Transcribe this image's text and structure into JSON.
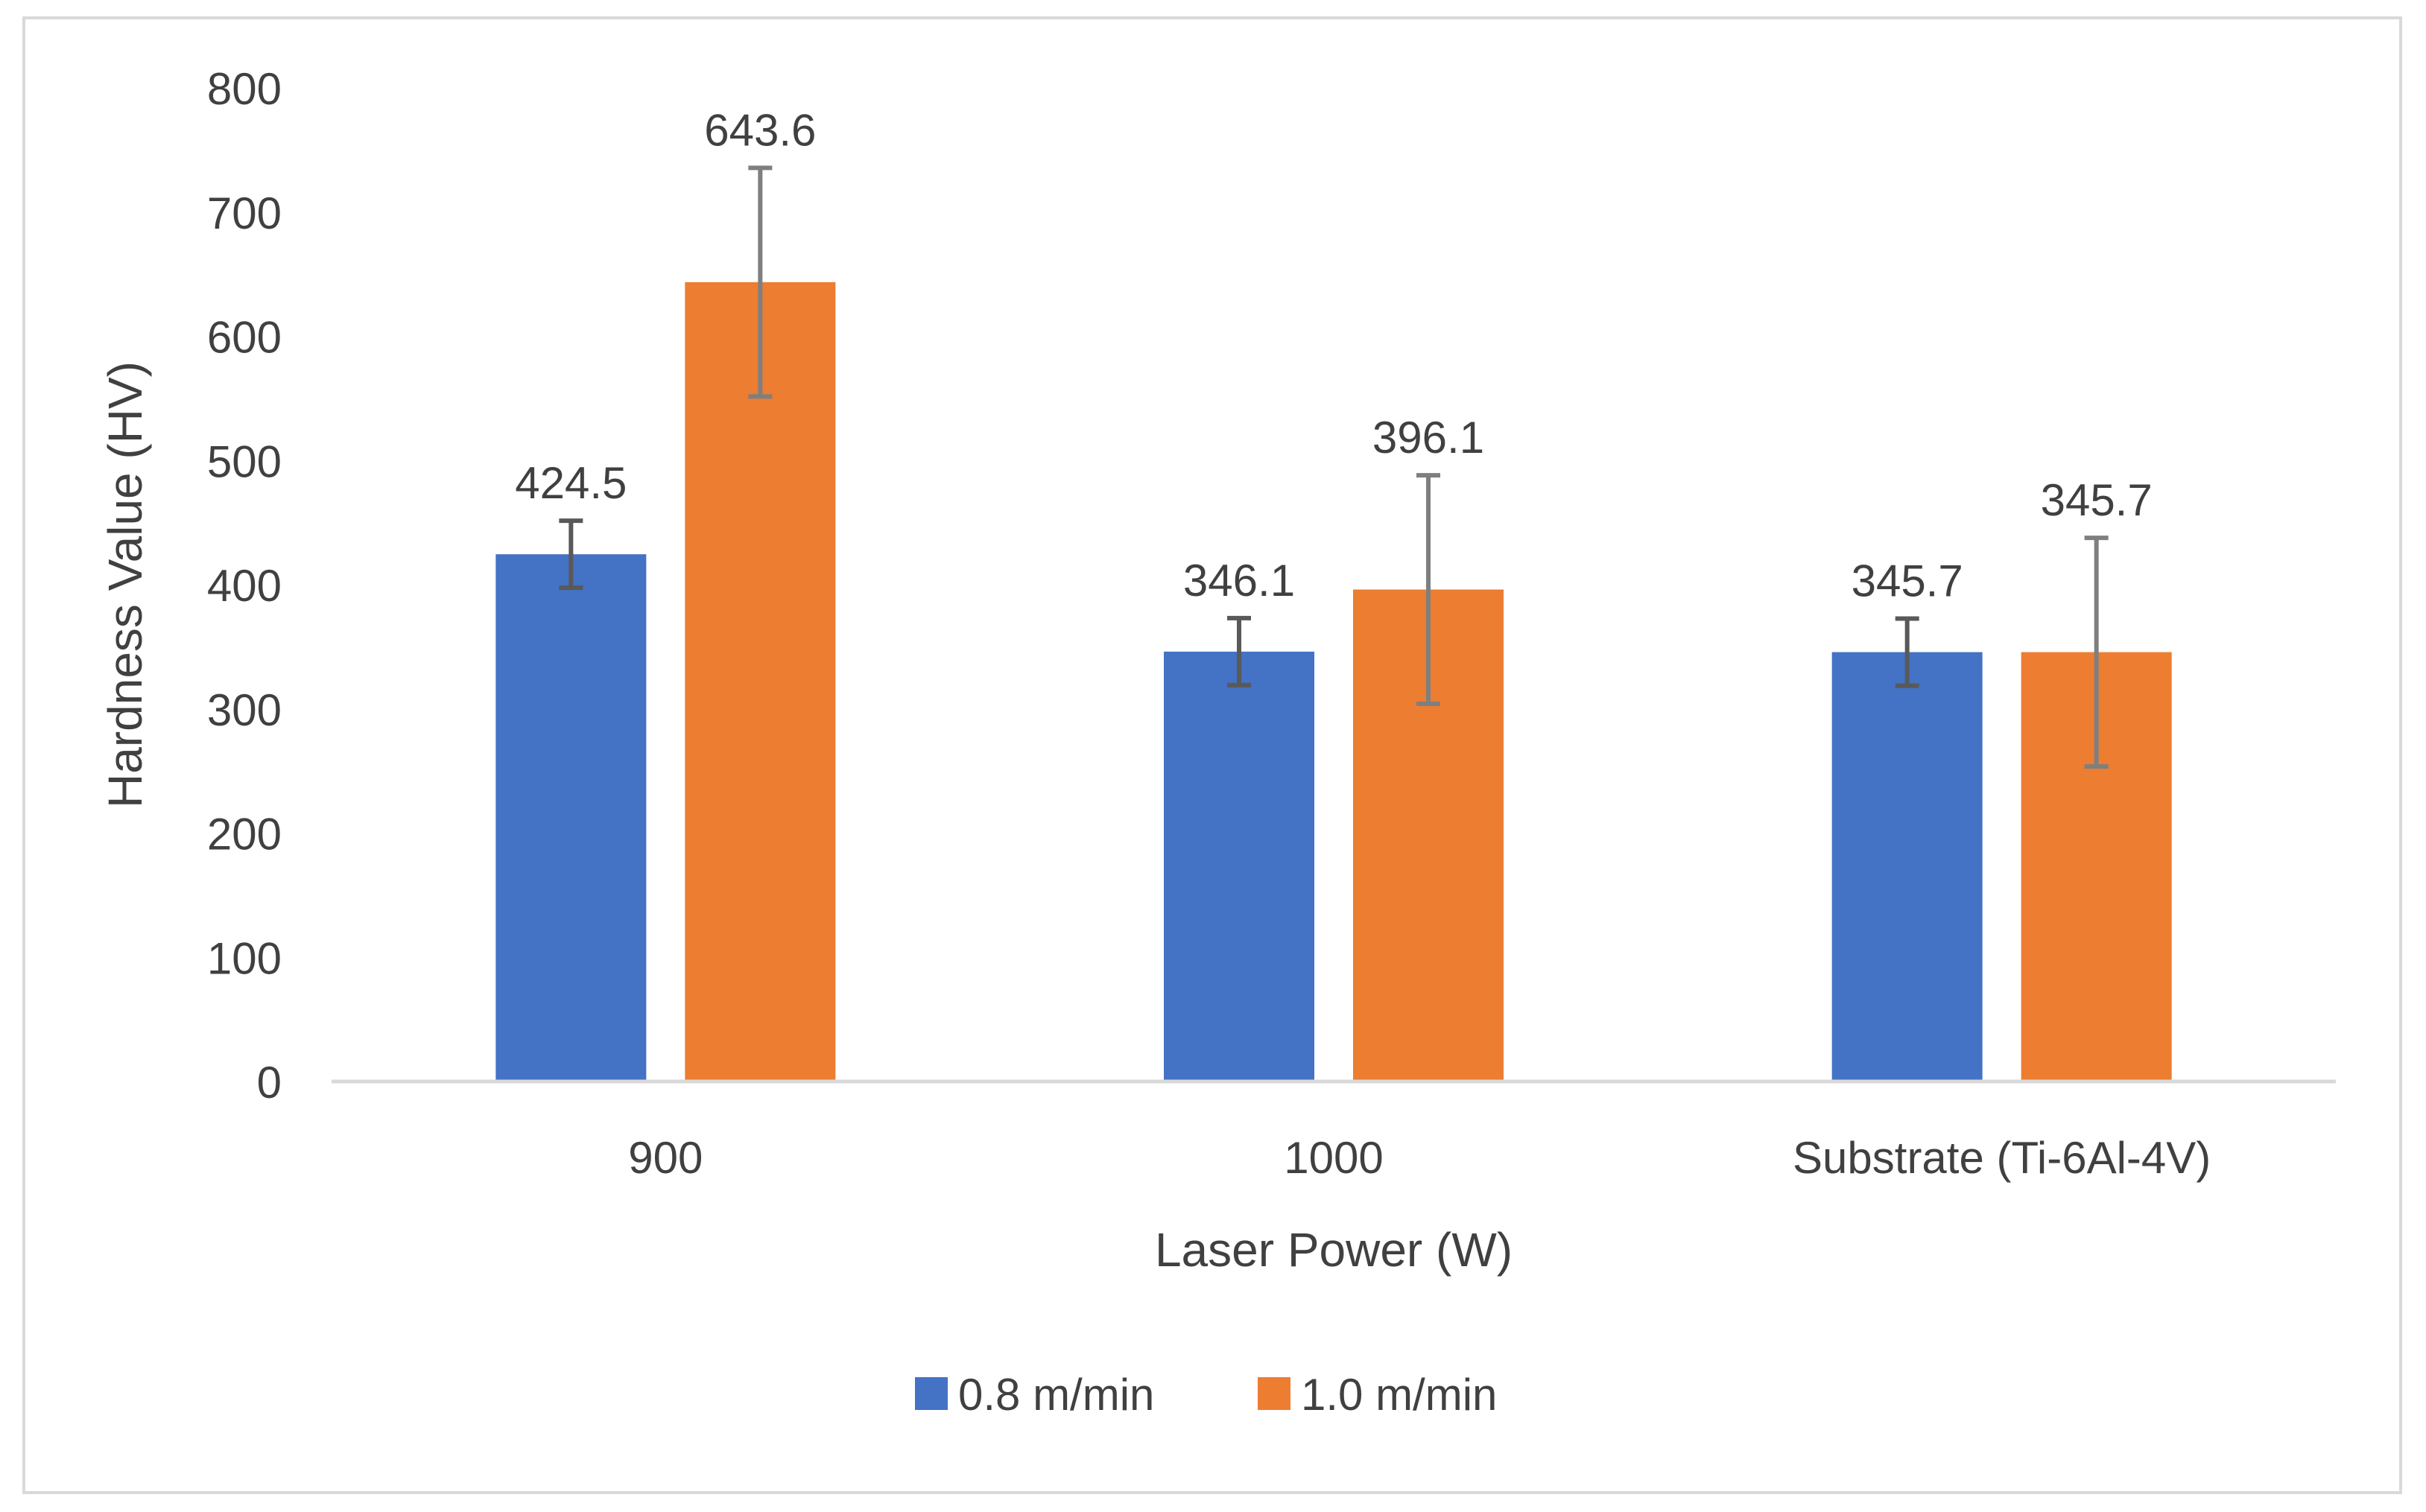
{
  "chart_data": {
    "type": "bar",
    "title": "",
    "xlabel": "Laser Power (W)",
    "ylabel": "Hardness Value (HV)",
    "categories": [
      "900",
      "1000",
      "Substrate (Ti-6Al-4V)"
    ],
    "ylim": [
      0,
      800
    ],
    "yticks": [
      0,
      100,
      200,
      300,
      400,
      500,
      600,
      700,
      800
    ],
    "grid": false,
    "legend_position": "bottom",
    "series": [
      {
        "name": "0.8 m/min",
        "color": "#4472C4",
        "values": [
          424.5,
          346.1,
          345.7
        ],
        "labels": [
          "424.5",
          "346.1",
          "345.7"
        ],
        "error": [
          27,
          27,
          27
        ]
      },
      {
        "name": "1.0 m/min",
        "color": "#ED7D31",
        "values": [
          643.6,
          396.1,
          345.7
        ],
        "labels": [
          "643.6",
          "396.1",
          "345.7"
        ],
        "error": [
          92,
          92,
          92
        ]
      }
    ]
  }
}
